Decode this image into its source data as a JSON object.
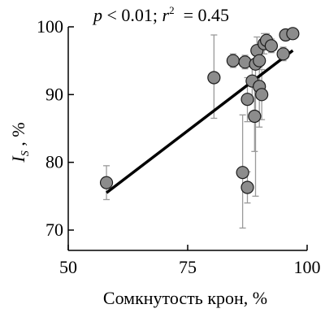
{
  "chart_data": {
    "type": "scatter",
    "title": "",
    "annotation": {
      "p_symbol": "p",
      "p_rest": " < 0.01; ",
      "r_symbol": "r",
      "r_exp": "2",
      "r_rest": "  = 0.45"
    },
    "xlabel": "Сомкнутость крон, %",
    "ylabel": {
      "main": "I",
      "subscript": "S",
      "suffix": " , %"
    },
    "xlim": [
      50,
      100
    ],
    "ylim": [
      67,
      100
    ],
    "xticks": [
      50,
      75,
      100
    ],
    "yticks": [
      70,
      80,
      90,
      100
    ],
    "grid": false,
    "legend": "none",
    "colors": {
      "marker_fill": "#8c8c8c",
      "marker_edge": "#1a1a1a",
      "error_bar": "#9a9a9a",
      "fit_line": "#000000"
    },
    "points": [
      {
        "x": 58,
        "y": 77.0,
        "err_low": 2.5,
        "err_high": 2.5
      },
      {
        "x": 80.5,
        "y": 92.5,
        "err_low": 6.0,
        "err_high": 6.3
      },
      {
        "x": 84.5,
        "y": 95.0,
        "err_low": 1.0,
        "err_high": 1.0
      },
      {
        "x": 86.5,
        "y": 78.5,
        "err_low": 8.2,
        "err_high": 8.5
      },
      {
        "x": 87,
        "y": 94.8,
        "err_low": 1.0,
        "err_high": 1.0
      },
      {
        "x": 87.5,
        "y": 76.3,
        "err_low": 2.3,
        "err_high": 2.3
      },
      {
        "x": 87.5,
        "y": 89.3,
        "err_low": 3.3,
        "err_high": 3.2
      },
      {
        "x": 88.5,
        "y": 92.0,
        "err_low": 3.0,
        "err_high": 3.0
      },
      {
        "x": 89,
        "y": 86.8,
        "err_low": 5.2,
        "err_high": 5.2
      },
      {
        "x": 89.2,
        "y": 94.5,
        "err_low": 19.5,
        "err_high": 1.5
      },
      {
        "x": 89.5,
        "y": 96.5,
        "err_low": 2.0,
        "err_high": 2.0
      },
      {
        "x": 90,
        "y": 95.0,
        "err_low": 1.0,
        "err_high": 1.0
      },
      {
        "x": 90,
        "y": 91.2,
        "err_low": 6.0,
        "err_high": 6.0
      },
      {
        "x": 90.5,
        "y": 90.0,
        "err_low": 3.7,
        "err_high": 3.7
      },
      {
        "x": 91,
        "y": 97.5,
        "err_low": 1.5,
        "err_high": 1.5
      },
      {
        "x": 91.5,
        "y": 98.0,
        "err_low": 1.0,
        "err_high": 1.0
      },
      {
        "x": 92.5,
        "y": 97.2,
        "err_low": 1.0,
        "err_high": 1.0
      },
      {
        "x": 95,
        "y": 96.0,
        "err_low": 1.0,
        "err_high": 1.0
      },
      {
        "x": 95.5,
        "y": 98.8,
        "err_low": 0.8,
        "err_high": 0.8
      },
      {
        "x": 97,
        "y": 99.0,
        "err_low": 0.8,
        "err_high": 0.8
      }
    ],
    "fit_line": {
      "x1": 58,
      "y1": 75.5,
      "x2": 97,
      "y2": 96.5
    }
  }
}
